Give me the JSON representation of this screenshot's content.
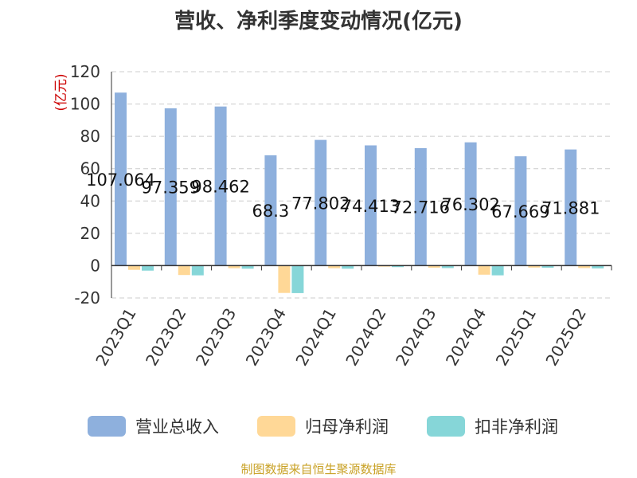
{
  "chart_title": "营收、净利季度变动情况(亿元)",
  "source_note": "制图数据来自恒生聚源数据库",
  "chart_data": {
    "type": "bar",
    "title": "营收、净利季度变动情况(亿元)",
    "ylabel": "(亿元)",
    "xlabel": "",
    "ylim": [
      -20,
      120
    ],
    "yticks": [
      -20,
      0,
      20,
      40,
      60,
      80,
      100,
      120
    ],
    "grid": true,
    "legend_position": "bottom",
    "categories": [
      "2023Q1",
      "2023Q2",
      "2023Q3",
      "2023Q4",
      "2024Q1",
      "2024Q2",
      "2024Q3",
      "2024Q4",
      "2025Q1",
      "2025Q2"
    ],
    "series": [
      {
        "name": "营业总收入",
        "color": "#8eb0dd",
        "values": [
          107.064,
          97.359,
          98.462,
          68.3,
          77.802,
          74.413,
          72.716,
          76.302,
          67.669,
          71.881
        ],
        "labels": [
          "107.064",
          "97.359",
          "98.462",
          "68.3",
          "77.802",
          "74.413",
          "72.716",
          "76.302",
          "67.669",
          "71.881"
        ]
      },
      {
        "name": "归母净利润",
        "color": "#ffd897",
        "values": [
          -2.6,
          -5.8,
          -1.6,
          -16.9,
          -1.6,
          -0.6,
          -1.3,
          -5.6,
          -1.2,
          -1.5
        ]
      },
      {
        "name": "扣非净利润",
        "color": "#86d6d8",
        "values": [
          -3.1,
          -6.0,
          -1.9,
          -17.0,
          -1.9,
          -0.9,
          -1.5,
          -6.0,
          -1.3,
          -1.7
        ]
      }
    ]
  }
}
